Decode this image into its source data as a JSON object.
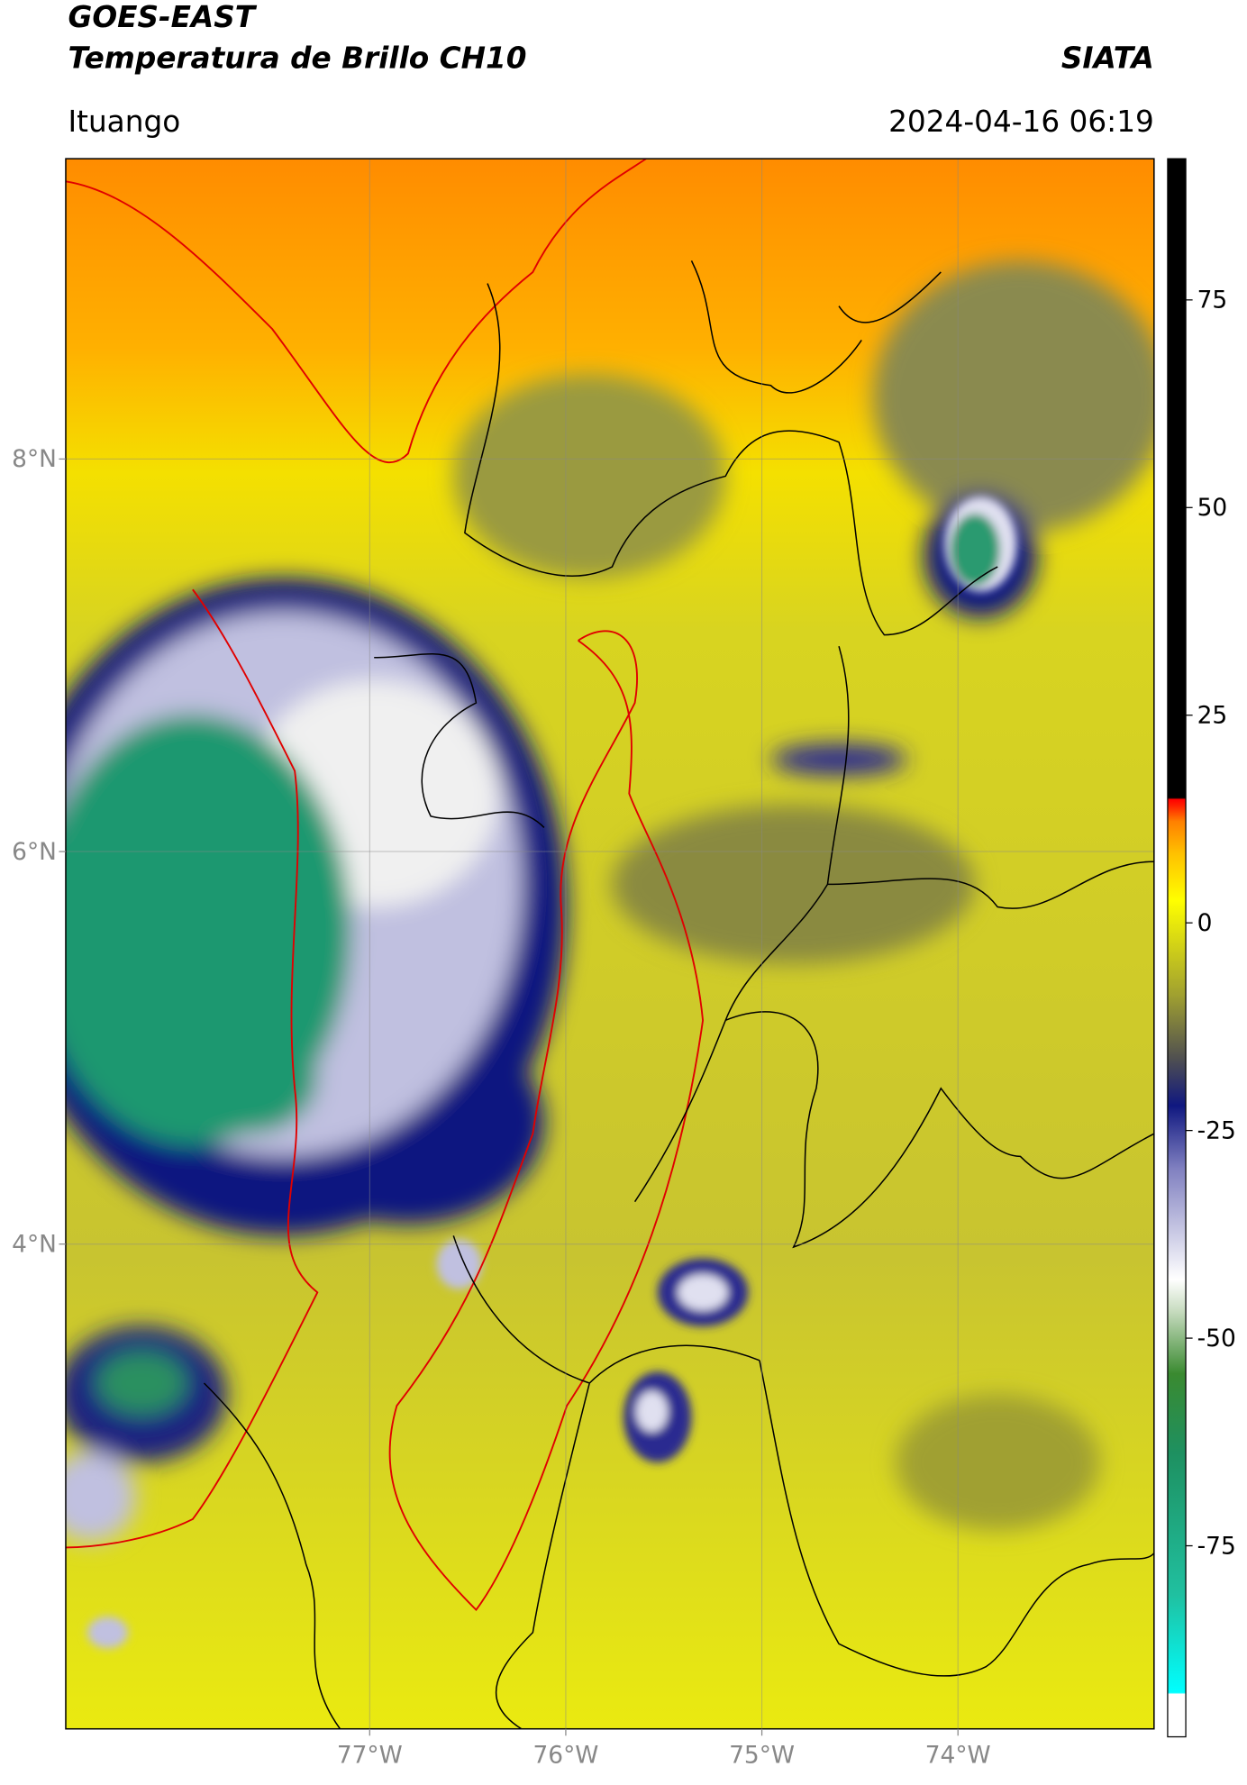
{
  "header": {
    "title_line1": "GOES-EAST",
    "title_line2": "Temperatura de Brillo CH10",
    "source": "SIATA",
    "location": "Ituango",
    "datetime": "2024-04-16 06:19"
  },
  "map": {
    "latlim": [
      1.53,
      9.53
    ],
    "lonlim": [
      -78.55,
      -73.0
    ],
    "lat_ticks": [
      {
        "value": 8,
        "label": "8°N"
      },
      {
        "value": 6,
        "label": "6°N"
      },
      {
        "value": 4,
        "label": "4°N"
      }
    ],
    "lon_ticks": [
      {
        "value": -77,
        "label": "77°W"
      },
      {
        "value": -76,
        "label": "76°W"
      },
      {
        "value": -75,
        "label": "75°W"
      },
      {
        "value": -74,
        "label": "74°W"
      }
    ],
    "grid": true
  },
  "colorbar": {
    "lim": [
      -98,
      92
    ],
    "ticks": [
      75,
      50,
      25,
      0,
      -25,
      -50,
      -75
    ]
  }
}
